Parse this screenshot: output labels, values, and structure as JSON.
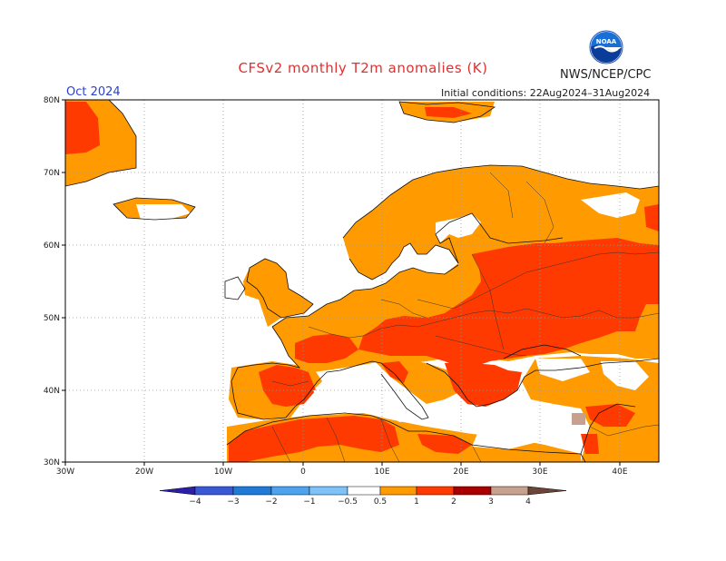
{
  "header": {
    "title": "CFSv2 monthly T2m anomalies (K)",
    "agency": "NWS/NCEP/CPC",
    "logo_icon": "noaa-logo-icon",
    "month": "Oct 2024",
    "initial_conditions": "Initial conditions: 22Aug2024–31Aug2024"
  },
  "map": {
    "lon_labels": [
      "30W",
      "20W",
      "10W",
      "0",
      "10E",
      "20E",
      "30E",
      "40E"
    ],
    "lat_labels": [
      "30N",
      "40N",
      "50N",
      "60N",
      "70N",
      "80N"
    ],
    "lon_range": [
      -30,
      45
    ],
    "lat_range": [
      30,
      80
    ],
    "grid": "dotted",
    "land_color": "#ffffff",
    "sea_color": "#ffffff"
  },
  "legend": {
    "labels": [
      "−4",
      "−3",
      "−2",
      "−1",
      "−0.5",
      "0.5",
      "1",
      "2",
      "3",
      "4"
    ],
    "colors": [
      "#2b1ea8",
      "#3a57d6",
      "#1f7ad8",
      "#4ea3ee",
      "#7fc2f8",
      "#ffffff",
      "#ff9a00",
      "#ff3a00",
      "#a80000",
      "#c8a08e",
      "#6b4638"
    ]
  }
}
